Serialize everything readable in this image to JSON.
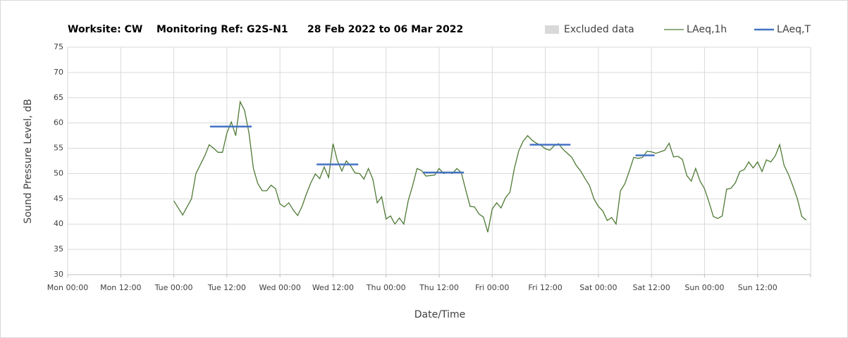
{
  "chart_data": {
    "type": "line",
    "title_parts": [
      "Worksite: CW",
      "Monitoring Ref: G2S-N1",
      "28 Feb 2022 to 06 Mar 2022"
    ],
    "xlabel": "Date/Time",
    "ylabel": "Sound Pressure Level, dB",
    "xlim": [
      0,
      168
    ],
    "xticks": [
      {
        "value": 0,
        "label": "Mon 00:00"
      },
      {
        "value": 12,
        "label": "Mon 12:00"
      },
      {
        "value": 24,
        "label": "Tue 00:00"
      },
      {
        "value": 36,
        "label": "Tue 12:00"
      },
      {
        "value": 48,
        "label": "Wed 00:00"
      },
      {
        "value": 60,
        "label": "Wed 12:00"
      },
      {
        "value": 72,
        "label": "Thu 00:00"
      },
      {
        "value": 84,
        "label": "Thu 12:00"
      },
      {
        "value": 96,
        "label": "Fri 00:00"
      },
      {
        "value": 108,
        "label": "Fri 12:00"
      },
      {
        "value": 120,
        "label": "Sat 00:00"
      },
      {
        "value": 132,
        "label": "Sat 12:00"
      },
      {
        "value": 144,
        "label": "Sun 00:00"
      },
      {
        "value": 156,
        "label": "Sun 12:00"
      },
      {
        "value": 168,
        "label": ""
      }
    ],
    "ylim": [
      30,
      75
    ],
    "yticks": [
      30,
      35,
      40,
      45,
      50,
      55,
      60,
      65,
      70,
      75
    ],
    "grid": true,
    "excluded_data": {
      "name": "Excluded data",
      "color": "#d9d9d9"
    },
    "series": [
      {
        "name": "LAeq,1h",
        "color": "#4e7a35",
        "x": [
          24,
          26,
          28,
          29,
          31,
          32,
          33,
          34,
          35,
          36,
          37,
          38,
          39,
          40,
          41,
          42,
          43,
          44,
          45,
          46,
          47,
          48,
          49,
          50,
          51,
          52,
          53,
          54,
          55,
          56,
          57,
          58,
          59,
          60,
          61,
          62,
          63,
          64,
          65,
          66,
          67,
          68,
          69,
          70,
          71,
          72,
          73,
          74,
          75,
          76,
          77,
          78,
          79,
          80,
          81,
          82,
          83,
          84,
          85,
          86,
          87,
          88,
          89,
          90,
          91,
          92,
          93,
          94,
          95,
          96,
          97,
          98,
          99,
          100,
          101,
          102,
          103,
          104,
          105,
          106,
          107,
          108,
          109,
          110,
          111,
          112,
          113,
          114,
          115,
          116,
          117,
          118,
          119,
          120,
          121,
          122,
          123,
          124,
          125,
          126,
          127,
          128,
          129,
          130,
          131,
          132,
          133,
          134,
          135,
          136,
          137,
          138,
          139,
          140,
          141,
          142,
          143,
          144,
          145,
          146,
          147,
          148,
          149,
          150,
          151,
          152,
          153,
          154,
          155,
          156,
          157,
          158,
          159,
          160,
          161,
          162,
          163,
          164,
          165,
          166,
          167
        ],
        "values": [
          44.6,
          41.8,
          45,
          50,
          53.5,
          55.7,
          55,
          54.2,
          54.2,
          58,
          60.2,
          57.5,
          64.2,
          62.5,
          58,
          51,
          48,
          46.6,
          46.6,
          47.7,
          47,
          44,
          43.4,
          44.2,
          42.8,
          41.7,
          43.5,
          46,
          48.2,
          49.9,
          49,
          51.3,
          49.2,
          55.9,
          52.5,
          50.5,
          52.5,
          51.5,
          50.1,
          50,
          48.9,
          51,
          48.9,
          44.2,
          45.4,
          41,
          41.6,
          40,
          41.2,
          40,
          44.6,
          47.6,
          51,
          50.6,
          49.5,
          49.6,
          49.7,
          51,
          50,
          50.3,
          50,
          51,
          50.2,
          46.8,
          43.5,
          43.4,
          42,
          41.4,
          38.4,
          43,
          44.2,
          43.2,
          45.2,
          46.3,
          51,
          54.5,
          56.4,
          57.5,
          56.6,
          56,
          55.6,
          54.9,
          54.6,
          55.5,
          55.9,
          54.8,
          54,
          53.2,
          51.6,
          50.5,
          49,
          47.6,
          45,
          43.5,
          42.6,
          40.7,
          41.3,
          40,
          46.6,
          48,
          50.5,
          53.2,
          53,
          53.2,
          54.4,
          54.3,
          54,
          54.3,
          54.6,
          56,
          53.3,
          53.4,
          52.8,
          49.6,
          48.5,
          51,
          48.5,
          47,
          44.4,
          41.5,
          41.1,
          41.6,
          46.9,
          47.1,
          48.2,
          50.4,
          50.8,
          52.3,
          51.1,
          52.3,
          50.4,
          52.7,
          52.3,
          53.5,
          55.7,
          51.6,
          49.8,
          47.5,
          45,
          41.5,
          40.8
        ]
      },
      {
        "name": "LAeq,T",
        "color": "#4472c4",
        "segments": [
          {
            "start": 32.2,
            "end": 41.6,
            "value": 59.3
          },
          {
            "start": 56.3,
            "end": 65.7,
            "value": 51.8
          },
          {
            "start": 80.4,
            "end": 89.6,
            "value": 50.2
          },
          {
            "start": 104.5,
            "end": 113.7,
            "value": 55.7
          },
          {
            "start": 128.4,
            "end": 132.7,
            "value": 53.6
          }
        ]
      }
    ]
  }
}
